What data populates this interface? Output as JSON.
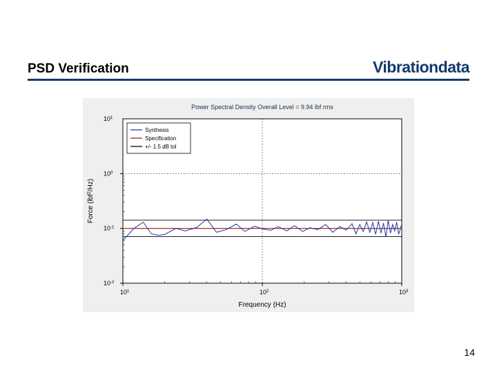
{
  "header": {
    "left": "PSD Verification",
    "right": "Vibrationdata",
    "left_fontsize": 19,
    "right_fontsize": 23,
    "left_color": "#000000",
    "right_color": "#153a6b",
    "rule_color": "#153a6b",
    "rule_top": 114,
    "rule_width": 3
  },
  "page_number": "14",
  "chart": {
    "type": "line",
    "bg_figure": "#efefef",
    "bg_axes": "#ffffff",
    "axis_color": "#000000",
    "grid_color": "#000000",
    "title": "Power Spectral Density   Overall Level =   9.94 lbf rms",
    "title_color": "#18324a",
    "title_fontsize": 9,
    "xlabel": "Frequency (Hz)",
    "ylabel": "Force  (lbf²/Hz)",
    "label_fontsize": 10,
    "xscale": "log",
    "yscale": "log",
    "xlim": [
      10,
      1000
    ],
    "ylim": [
      0.01,
      10
    ],
    "xticks": [
      {
        "v": 10,
        "label": "10",
        "exp": "1"
      },
      {
        "v": 100,
        "label": "10",
        "exp": "2"
      },
      {
        "v": 1000,
        "label": "10",
        "exp": "3"
      }
    ],
    "yticks": [
      {
        "v": 0.01,
        "label": "10",
        "exp": "-2"
      },
      {
        "v": 0.1,
        "label": "10",
        "exp": "-1"
      },
      {
        "v": 1,
        "label": "10",
        "exp": "0"
      }
    ],
    "yticks_extra_top": {
      "v": 10,
      "label": "10",
      "exp": "1"
    },
    "legend": {
      "box_stroke": "#000000",
      "box_fill": "#ffffff",
      "fontsize": 8,
      "items": [
        {
          "label": "Synthesis",
          "color": "#1a3aa0"
        },
        {
          "label": "Specification",
          "color": "#a01a1a"
        },
        {
          "label": "+/-  1.5 dB tol",
          "color": "#000000"
        }
      ]
    },
    "series": {
      "specification": {
        "color": "#a01a1a",
        "width": 1.2,
        "points": [
          [
            10,
            0.1
          ],
          [
            1000,
            0.1
          ]
        ]
      },
      "tol_upper": {
        "color": "#000000",
        "width": 0.8,
        "points": [
          [
            10,
            0.141
          ],
          [
            1000,
            0.141
          ]
        ]
      },
      "tol_lower": {
        "color": "#000000",
        "width": 0.8,
        "points": [
          [
            10,
            0.0708
          ],
          [
            1000,
            0.0708
          ]
        ]
      },
      "synthesis": {
        "color": "#1a3aa0",
        "width": 1.0,
        "points": [
          [
            10,
            0.06
          ],
          [
            12,
            0.1
          ],
          [
            14,
            0.13
          ],
          [
            16,
            0.08
          ],
          [
            18,
            0.075
          ],
          [
            20,
            0.078
          ],
          [
            24,
            0.1
          ],
          [
            28,
            0.09
          ],
          [
            34,
            0.105
          ],
          [
            40,
            0.148
          ],
          [
            47,
            0.085
          ],
          [
            55,
            0.095
          ],
          [
            65,
            0.12
          ],
          [
            75,
            0.088
          ],
          [
            88,
            0.11
          ],
          [
            100,
            0.098
          ],
          [
            115,
            0.092
          ],
          [
            130,
            0.108
          ],
          [
            150,
            0.09
          ],
          [
            170,
            0.112
          ],
          [
            195,
            0.088
          ],
          [
            220,
            0.103
          ],
          [
            250,
            0.095
          ],
          [
            285,
            0.118
          ],
          [
            320,
            0.085
          ],
          [
            360,
            0.108
          ],
          [
            400,
            0.093
          ],
          [
            440,
            0.122
          ],
          [
            470,
            0.08
          ],
          [
            500,
            0.118
          ],
          [
            530,
            0.088
          ],
          [
            560,
            0.132
          ],
          [
            590,
            0.085
          ],
          [
            620,
            0.128
          ],
          [
            650,
            0.078
          ],
          [
            680,
            0.135
          ],
          [
            710,
            0.082
          ],
          [
            740,
            0.125
          ],
          [
            770,
            0.07
          ],
          [
            800,
            0.14
          ],
          [
            830,
            0.082
          ],
          [
            860,
            0.118
          ],
          [
            890,
            0.09
          ],
          [
            920,
            0.13
          ],
          [
            950,
            0.078
          ],
          [
            1000,
            0.12
          ]
        ]
      }
    }
  }
}
